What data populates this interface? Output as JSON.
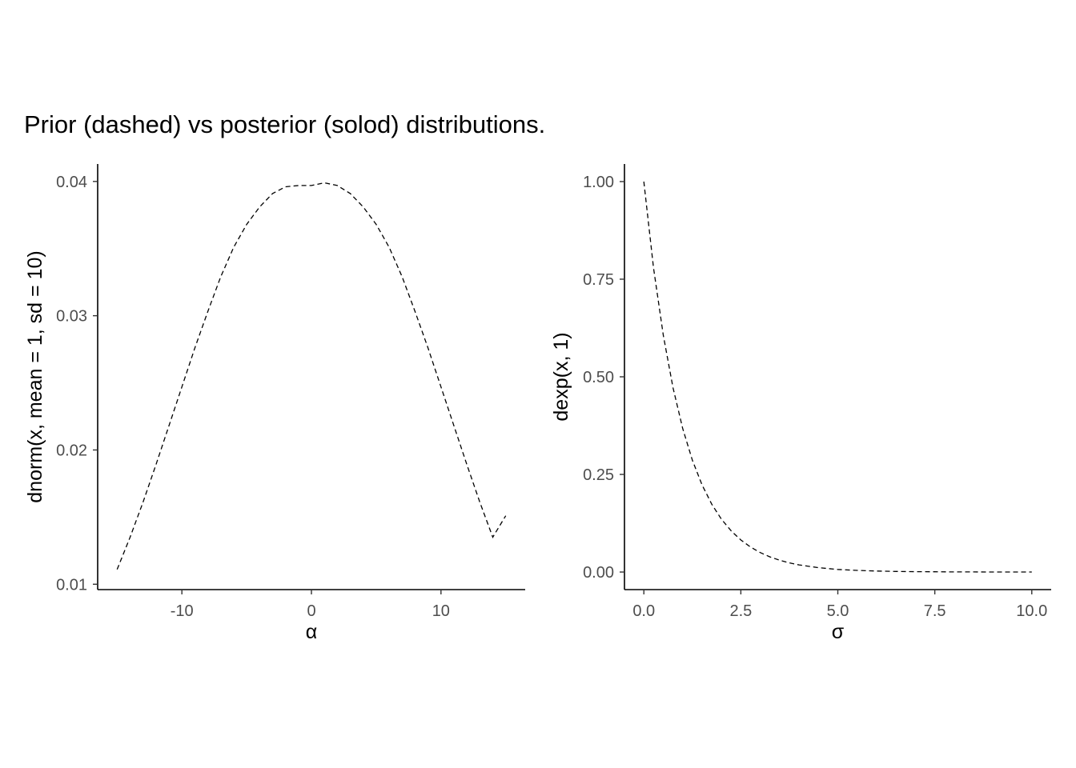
{
  "title": "Prior (dashed) vs posterior (solod) distributions.",
  "chart_data": [
    {
      "type": "line",
      "xlabel": "α",
      "ylabel": "dnorm(x, mean = 1, sd = 10)",
      "xlim": [
        -16.5,
        16.5
      ],
      "ylim": [
        0.0096,
        0.0413
      ],
      "xticks": [
        -10,
        0,
        10
      ],
      "xtick_labels": [
        "-10",
        "0",
        "10"
      ],
      "yticks": [
        0.01,
        0.02,
        0.03,
        0.04
      ],
      "ytick_labels": [
        "0.01",
        "0.02",
        "0.03",
        "0.04"
      ],
      "grid": false,
      "series": [
        {
          "line_style": "dashed",
          "color": "#000000",
          "x": [
            -15,
            -14,
            -13,
            -12,
            -11,
            -10,
            -9,
            -8,
            -7,
            -6,
            -5,
            -4,
            -3,
            -2,
            -1,
            0,
            1,
            2,
            3,
            4,
            5,
            6,
            7,
            8,
            9,
            10,
            11,
            12,
            13,
            14,
            15
          ],
          "y": [
            0.0111,
            0.0135,
            0.0161,
            0.0189,
            0.0218,
            0.0247,
            0.0276,
            0.0303,
            0.0329,
            0.0351,
            0.0368,
            0.0381,
            0.0391,
            0.0396,
            0.0397,
            0.0397,
            0.0399,
            0.0397,
            0.0391,
            0.0381,
            0.0368,
            0.0351,
            0.0329,
            0.0303,
            0.0276,
            0.0247,
            0.0218,
            0.0189,
            0.0161,
            0.0135,
            0.0151
          ]
        }
      ]
    },
    {
      "type": "line",
      "xlabel": "σ",
      "ylabel": "dexp(x, 1)",
      "xlim": [
        -0.5,
        10.5
      ],
      "ylim": [
        -0.045,
        1.045
      ],
      "xticks": [
        0,
        2.5,
        5,
        7.5,
        10
      ],
      "xtick_labels": [
        "0.0",
        "2.5",
        "5.0",
        "7.5",
        "10.0"
      ],
      "yticks": [
        0,
        0.25,
        0.5,
        0.75,
        1
      ],
      "ytick_labels": [
        "0.00",
        "0.25",
        "0.50",
        "0.75",
        "1.00"
      ],
      "grid": false,
      "series": [
        {
          "line_style": "dashed",
          "color": "#000000",
          "x": [
            0,
            0.25,
            0.5,
            0.75,
            1,
            1.25,
            1.5,
            1.75,
            2,
            2.25,
            2.5,
            2.75,
            3,
            3.25,
            3.5,
            3.75,
            4,
            4.5,
            5,
            5.5,
            6,
            6.5,
            7,
            7.5,
            8,
            8.5,
            9,
            9.5,
            10
          ],
          "y": [
            1,
            0.7788,
            0.6065,
            0.4724,
            0.3679,
            0.2865,
            0.2231,
            0.1738,
            0.1353,
            0.1054,
            0.0821,
            0.0639,
            0.0498,
            0.0388,
            0.0302,
            0.0235,
            0.0183,
            0.0111,
            0.0067,
            0.0041,
            0.0025,
            0.0015,
            0.0009,
            0.0006,
            0.0003,
            0.0002,
            0.0001,
            0.0001,
            0
          ]
        }
      ]
    }
  ]
}
